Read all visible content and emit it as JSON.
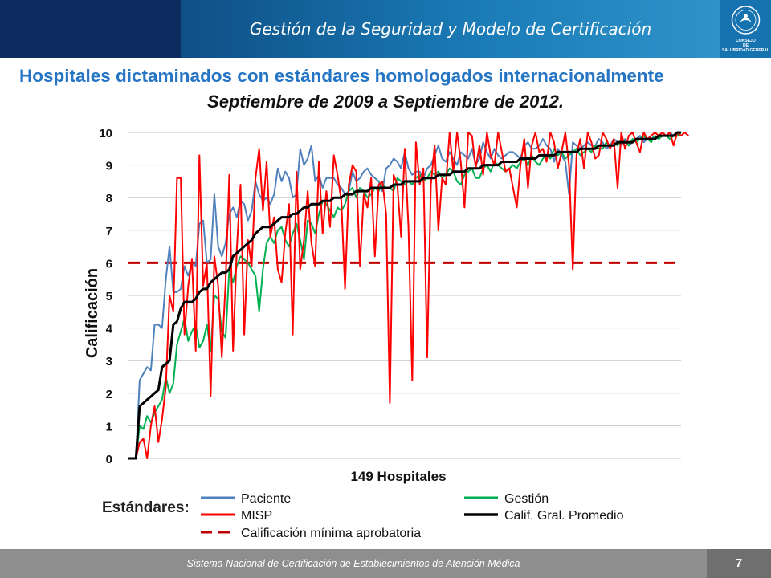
{
  "header": {
    "title": "Gestión de la Seguridad y Modelo de Certificación",
    "logo_text": [
      "CONSEJO",
      "DE",
      "SALUBRIDAD GENERAL"
    ]
  },
  "colors": {
    "header_dark": "#0d2b5e",
    "title_blue": "#2575c4",
    "paciente": "#4f81bd",
    "misp": "#ff0000",
    "gestion": "#00b050",
    "promedio": "#000000",
    "minima": "#c00000"
  },
  "slide": {
    "title": "Hospitales dictaminados con estándares homologados internacionalmente",
    "subtitle": "Septiembre de 2009 a Septiembre de 2012."
  },
  "chart_data": {
    "type": "line",
    "xlabel": "149 Hospitales",
    "ylabel": "Calificación",
    "ylim": [
      0,
      10
    ],
    "yticks": [
      "0",
      "1",
      "2",
      "3",
      "4",
      "5",
      "6",
      "7",
      "8",
      "9",
      "10"
    ],
    "grid": true,
    "x_count": 149,
    "legend_title": "Estándares:",
    "legend_position": "bottom",
    "series": [
      {
        "name": "Paciente",
        "color_key": "paciente",
        "style": "solid",
        "values": [
          0,
          0,
          0,
          2.4,
          2.6,
          2.8,
          2.7,
          4.1,
          4.1,
          4.0,
          5.5,
          6.5,
          5.1,
          5.1,
          5.2,
          5.9,
          5.6,
          6.0,
          5.9,
          7.2,
          7.3,
          6.0,
          6.1,
          8.1,
          6.5,
          6.2,
          6.6,
          7.5,
          7.7,
          7.4,
          7.9,
          7.8,
          7.3,
          7.6,
          8.5,
          8.1,
          7.9,
          8.0,
          7.8,
          8.1,
          8.9,
          8.5,
          8.8,
          8.6,
          8.0,
          8.1,
          9.5,
          9.0,
          9.2,
          9.6,
          8.5,
          8.7,
          8.3,
          8.6,
          8.6,
          8.6,
          8.4,
          8.3,
          8.1,
          8.2,
          8.8,
          8.5,
          8.6,
          8.8,
          8.9,
          8.7,
          8.6,
          8.5,
          8.2,
          8.9,
          9.0,
          9.2,
          9.1,
          8.9,
          9.4,
          8.9,
          8.7,
          8.8,
          8.8,
          8.6,
          8.9,
          9.0,
          9.3,
          9.6,
          9.2,
          9.1,
          9.4,
          9.2,
          9.0,
          9.4,
          9.3,
          9.2,
          9.5,
          9.0,
          9.2,
          9.7,
          9.4,
          9.2,
          9.5,
          9.3,
          9.2,
          9.3,
          9.4,
          9.4,
          9.3,
          9.2,
          9.6,
          9.7,
          9.5,
          9.5,
          9.6,
          9.8,
          9.6,
          9.5,
          9.1,
          9.5,
          9.3,
          9.1,
          8.1,
          9.7,
          9.6,
          9.5,
          9.6,
          9.7,
          9.6,
          9.6,
          9.8,
          9.7,
          9.5,
          9.6,
          9.8,
          9.7,
          9.6,
          9.8,
          9.6,
          9.7,
          9.8,
          9.9,
          9.7,
          9.8,
          9.8,
          9.9,
          9.8,
          9.9,
          9.9,
          10,
          9.9,
          9.9,
          10
        ]
      },
      {
        "name": "MISP",
        "color_key": "misp",
        "style": "solid",
        "values": [
          0,
          0,
          0,
          0.5,
          0.6,
          0,
          1.0,
          1.6,
          0.5,
          1.2,
          2.2,
          5.0,
          4.5,
          8.6,
          8.6,
          3.8,
          5.3,
          6.1,
          3.3,
          9.3,
          5.3,
          6.0,
          1.9,
          6.2,
          5.3,
          3.1,
          5.4,
          8.7,
          3.3,
          6.4,
          8.4,
          3.8,
          6.7,
          5.9,
          8.6,
          9.5,
          7.6,
          9.1,
          6.8,
          7.4,
          5.8,
          5.4,
          6.9,
          7.8,
          3.8,
          8.8,
          5.8,
          6.7,
          8.2,
          6.6,
          5.9,
          9.1,
          6.9,
          8.2,
          7.1,
          9.3,
          8.7,
          7.9,
          5.2,
          8.4,
          9.0,
          8.8,
          5.9,
          8.1,
          7.7,
          8.6,
          6.2,
          8.4,
          8.5,
          7.5,
          1.7,
          8.7,
          8.4,
          6.8,
          9.5,
          7.1,
          2.4,
          9.7,
          8.4,
          8.9,
          3.1,
          8.4,
          9.6,
          7.0,
          8.6,
          8.4,
          10,
          8.8,
          10,
          9.1,
          7.7,
          10,
          9.9,
          8.9,
          9.6,
          8.7,
          10,
          9.3,
          9.0,
          10,
          9.4,
          8.8,
          8.9,
          8.3,
          7.7,
          9.0,
          9.8,
          8.3,
          9.6,
          10,
          9.4,
          9.5,
          9.1,
          10,
          9.7,
          8.9,
          9.4,
          10,
          9.0,
          5.8,
          9.3,
          9.8,
          8.9,
          10,
          9.7,
          9.2,
          9.3,
          10,
          9.8,
          9.5,
          9.8,
          8.3,
          10,
          9.5,
          9.9,
          10,
          9.7,
          9.4,
          10,
          9.8,
          9.9,
          10,
          9.9,
          10,
          9.9,
          10,
          9.6,
          10,
          9.9,
          10,
          9.9
        ]
      },
      {
        "name": "Gestión",
        "color_key": "gestion",
        "style": "solid",
        "values": [
          0,
          0,
          0,
          1.0,
          0.9,
          1.3,
          1.1,
          1.4,
          1.6,
          1.8,
          2.5,
          2.0,
          2.3,
          3.5,
          3.9,
          4.3,
          3.6,
          3.9,
          4.1,
          3.4,
          3.6,
          4.1,
          3.3,
          5.0,
          4.9,
          3.9,
          3.7,
          5.8,
          5.4,
          5.9,
          6.2,
          6.1,
          6.0,
          5.8,
          5.6,
          4.5,
          5.8,
          6.6,
          6.8,
          6.6,
          7.0,
          7.1,
          6.7,
          6.5,
          6.9,
          7.2,
          6.7,
          6.1,
          7.3,
          7.2,
          6.9,
          7.5,
          7.9,
          7.8,
          7.6,
          7.4,
          7.7,
          7.6,
          7.8,
          8.2,
          8.3,
          8.0,
          8.3,
          8.2,
          8.0,
          8.1,
          8.3,
          8.2,
          8.4,
          8.3,
          8.3,
          8.2,
          8.6,
          8.5,
          8.4,
          8.5,
          8.4,
          8.6,
          8.7,
          8.5,
          8.6,
          8.8,
          8.7,
          8.8,
          8.6,
          8.7,
          8.9,
          8.8,
          8.5,
          8.4,
          8.7,
          8.8,
          8.9,
          8.6,
          8.6,
          8.9,
          9.0,
          8.8,
          9.1,
          9.0,
          8.9,
          8.8,
          8.9,
          9.0,
          8.9,
          9.1,
          9.2,
          9.0,
          9.3,
          9.1,
          9.0,
          9.2,
          9.3,
          9.2,
          9.5,
          9.3,
          9.4,
          9.2,
          9.3,
          9.4,
          9.5,
          9.3,
          9.4,
          9.5,
          9.4,
          9.6,
          9.5,
          9.5,
          9.7,
          9.6,
          9.7,
          9.6,
          9.8,
          9.7,
          9.6,
          9.8,
          9.7,
          9.8,
          9.9,
          9.8,
          9.7,
          9.9,
          9.8,
          9.9,
          9.9,
          9.8,
          9.9,
          9.9,
          10
        ]
      },
      {
        "name": "Calif. Gral. Promedio",
        "color_key": "promedio",
        "style": "solid",
        "values": [
          0,
          0,
          0,
          1.6,
          1.7,
          1.8,
          1.9,
          2.0,
          2.1,
          2.8,
          2.9,
          3.0,
          4.1,
          4.2,
          4.6,
          4.8,
          4.8,
          4.8,
          4.9,
          5.1,
          5.2,
          5.2,
          5.4,
          5.5,
          5.6,
          5.7,
          5.7,
          5.8,
          6.2,
          6.3,
          6.4,
          6.5,
          6.6,
          6.7,
          6.9,
          7.0,
          7.1,
          7.1,
          7.1,
          7.2,
          7.3,
          7.4,
          7.4,
          7.4,
          7.5,
          7.5,
          7.6,
          7.7,
          7.7,
          7.8,
          7.8,
          7.8,
          7.9,
          7.9,
          7.9,
          8.0,
          8.0,
          8.0,
          8.1,
          8.1,
          8.1,
          8.2,
          8.2,
          8.2,
          8.2,
          8.3,
          8.3,
          8.3,
          8.3,
          8.3,
          8.3,
          8.4,
          8.4,
          8.4,
          8.5,
          8.5,
          8.5,
          8.5,
          8.5,
          8.6,
          8.6,
          8.6,
          8.6,
          8.7,
          8.7,
          8.7,
          8.7,
          8.8,
          8.8,
          8.8,
          8.8,
          8.9,
          8.9,
          8.9,
          8.9,
          9.0,
          9.0,
          9.0,
          9.0,
          9.0,
          9.1,
          9.1,
          9.1,
          9.1,
          9.1,
          9.2,
          9.2,
          9.2,
          9.2,
          9.2,
          9.3,
          9.3,
          9.3,
          9.3,
          9.3,
          9.4,
          9.4,
          9.4,
          9.4,
          9.4,
          9.4,
          9.5,
          9.5,
          9.5,
          9.5,
          9.5,
          9.6,
          9.6,
          9.6,
          9.6,
          9.6,
          9.7,
          9.7,
          9.7,
          9.7,
          9.7,
          9.8,
          9.8,
          9.8,
          9.8,
          9.8,
          9.8,
          9.9,
          9.9,
          9.9,
          9.9,
          9.9,
          10,
          10
        ]
      },
      {
        "name": "Calificación mínima aprobatoria",
        "color_key": "minima",
        "style": "dashed",
        "constant": 6
      }
    ]
  },
  "footer": {
    "text": "Sistema Nacional de Certificación de Establecimientos de Atención Médica",
    "page": "7"
  }
}
